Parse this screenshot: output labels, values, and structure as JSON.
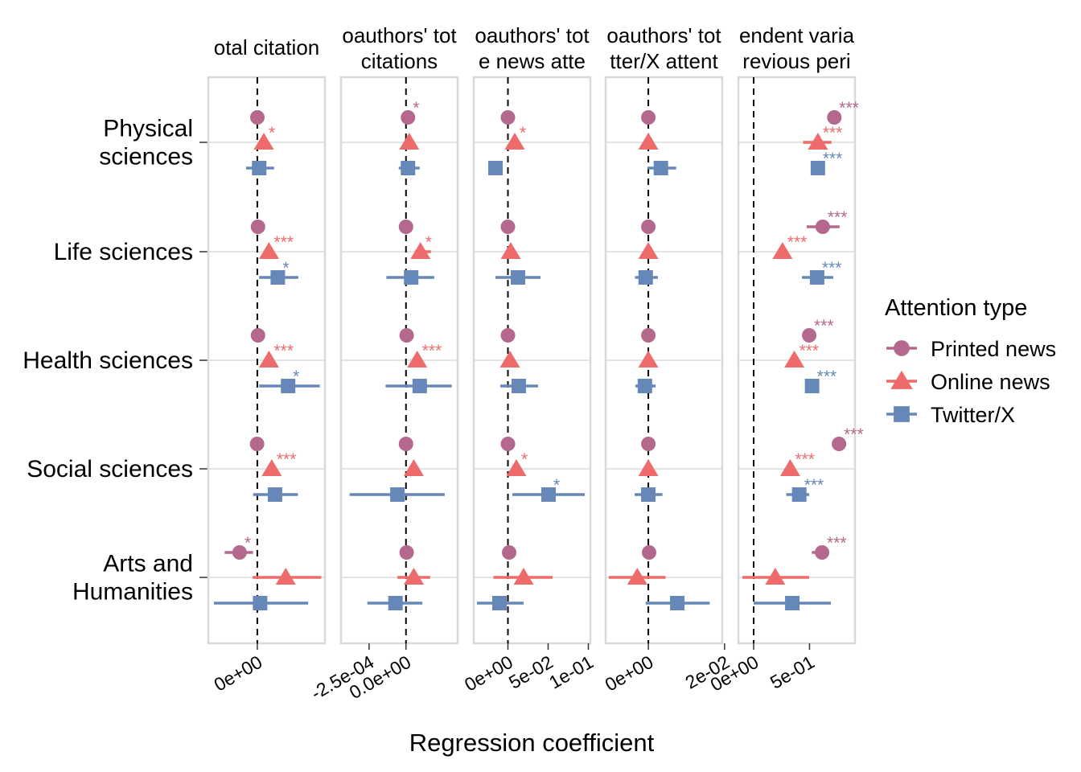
{
  "chart_data": {
    "type": "scatter",
    "xlabel": "Regression coefficient",
    "categories": [
      "Physical sciences",
      "Life sciences",
      "Health sciences",
      "Social sciences",
      "Arts and Humanities"
    ],
    "category_lines": [
      [
        "Physical",
        "sciences"
      ],
      [
        "Life sciences"
      ],
      [
        "Health sciences"
      ],
      [
        "Social sciences"
      ],
      [
        "Arts and",
        "Humanities"
      ]
    ],
    "legend": {
      "title": "Attention type",
      "position": "right",
      "items": [
        {
          "name": "Printed news",
          "color": "#b5688d",
          "shape": "circle"
        },
        {
          "name": "Online news",
          "color": "#ee6b6b",
          "shape": "triangle"
        },
        {
          "name": "Twitter/X",
          "color": "#6688b8",
          "shape": "square"
        }
      ]
    },
    "facets": [
      {
        "strip": [
          "otal citation"
        ],
        "xlim": [
          -0.000105,
          0.000145
        ],
        "ticks": [
          {
            "value": 0,
            "label": "0e+00"
          }
        ],
        "dashed_zero": true,
        "series": [
          {
            "name": "Printed news",
            "values": [
              1e-07,
              1.5e-06,
              1.5e-06,
              -5e-07,
              -3.8e-05
            ],
            "ci_low": [
              null,
              null,
              null,
              null,
              -7e-05
            ],
            "ci_high": [
              null,
              null,
              null,
              null,
              -9e-06
            ],
            "sig": [
              "",
              "",
              "",
              "",
              "*"
            ]
          },
          {
            "name": "Online news",
            "values": [
              1.4e-05,
              2.5e-05,
              2.5e-05,
              3.1e-05,
              6.1e-05
            ],
            "ci_low": [
              null,
              null,
              null,
              null,
              -1e-05
            ],
            "ci_high": [
              null,
              null,
              null,
              null,
              0.000137
            ],
            "sig": [
              "*",
              "***",
              "***",
              "***",
              ""
            ]
          },
          {
            "name": "Twitter/X",
            "values": [
              4e-06,
              4.4e-05,
              6.6e-05,
              3.8e-05,
              6e-06
            ],
            "ci_low": [
              -2.4e-05,
              4e-06,
              4e-06,
              -9e-06,
              -9.3e-05
            ],
            "ci_high": [
              3.6e-05,
              8.8e-05,
              0.000134,
              8.7e-05,
              0.000109
            ],
            "sig": [
              "",
              "*",
              "*",
              "",
              ""
            ]
          }
        ]
      },
      {
        "strip": [
          "oauthors' tot",
          "citations"
        ],
        "xlim": [
          -0.00044,
          0.00035
        ],
        "ticks": [
          {
            "value": -0.00025,
            "label": "-2.5e-04"
          },
          {
            "value": 0,
            "label": "0.0e+00"
          }
        ],
        "dashed_zero": true,
        "series": [
          {
            "name": "Printed news",
            "values": [
              1.35e-05,
              1e-07,
              4.5e-06,
              1e-07,
              4.5e-06
            ],
            "ci_low": [
              null,
              null,
              null,
              null,
              null
            ],
            "ci_high": [
              null,
              null,
              null,
              null,
              null
            ],
            "sig": [
              "*",
              "",
              "",
              "",
              ""
            ]
          },
          {
            "name": "Online news",
            "values": [
              2.2e-05,
              9.8e-05,
              7.6e-05,
              5.3e-05,
              5.3e-05
            ],
            "ci_low": [
              null,
              6e-05,
              null,
              null,
              -5.8e-05
            ],
            "ci_high": [
              null,
              0.000169,
              null,
              null,
              0.000164
            ],
            "sig": [
              "",
              "*",
              "***",
              "",
              ""
            ]
          },
          {
            "name": "Twitter/X",
            "values": [
              1.35e-05,
              3.5e-05,
              9.3e-05,
              -5.8e-05,
              -7.1e-05
            ],
            "ci_low": [
              -4.9e-05,
              -0.000133,
              -0.000138,
              -0.000382,
              -0.000262
            ],
            "ci_high": [
              9.3e-05,
              0.000191,
              0.00031,
              0.000262,
              0.000111
            ],
            "sig": [
              "",
              "",
              "",
              "",
              ""
            ]
          }
        ]
      },
      {
        "strip": [
          "oauthors' tot",
          "e news atte"
        ],
        "xlim": [
          -0.0425,
          0.1025
        ],
        "ticks": [
          {
            "value": 0,
            "label": "0e+00"
          },
          {
            "value": 0.05,
            "label": "5e-02"
          },
          {
            "value": 0.1,
            "label": "1e-01"
          }
        ],
        "dashed_zero": true,
        "series": [
          {
            "name": "Printed news",
            "values": [
              0,
              0,
              0,
              0,
              0.0015
            ],
            "ci_low": [
              null,
              null,
              null,
              null,
              null
            ],
            "ci_high": [
              null,
              null,
              null,
              null,
              null
            ],
            "sig": [
              "",
              "",
              "",
              "",
              ""
            ]
          },
          {
            "name": "Online news",
            "values": [
              0.0085,
              0.0035,
              0.0025,
              0.0105,
              0.0195
            ],
            "ci_low": [
              null,
              null,
              null,
              null,
              -0.018
            ],
            "ci_high": [
              null,
              null,
              null,
              null,
              0.0555
            ],
            "sig": [
              "*",
              "",
              "",
              "*",
              ""
            ]
          },
          {
            "name": "Twitter/X",
            "values": [
              -0.0155,
              0.0125,
              0.0135,
              0.0505,
              -0.0105
            ],
            "ci_low": [
              -0.0245,
              -0.0155,
              -0.0095,
              0.0055,
              -0.0385
            ],
            "ci_high": [
              -0.0125,
              0.0405,
              0.0375,
              0.0955,
              0.0195
            ],
            "sig": [
              "",
              "",
              "",
              "*",
              ""
            ]
          }
        ]
      },
      {
        "strip": [
          "oauthors' tot",
          "tter/X attent"
        ],
        "xlim": [
          -0.0112,
          0.0194
        ],
        "ticks": [
          {
            "value": 0,
            "label": "0e+00"
          },
          {
            "value": 0.02,
            "label": "2e-02"
          }
        ],
        "dashed_zero": true,
        "series": [
          {
            "name": "Printed news",
            "values": [
              0,
              0,
              0,
              0,
              0.0002
            ],
            "ci_low": [
              null,
              null,
              null,
              null,
              null
            ],
            "ci_high": [
              null,
              null,
              null,
              null,
              null
            ],
            "sig": [
              "",
              "",
              "",
              "",
              ""
            ]
          },
          {
            "name": "Online news",
            "values": [
              0,
              0,
              0,
              0,
              -0.0029
            ],
            "ci_low": [
              null,
              null,
              null,
              null,
              -0.0104
            ],
            "ci_high": [
              null,
              null,
              null,
              null,
              0.0045
            ],
            "sig": [
              "",
              "",
              "",
              "",
              ""
            ]
          },
          {
            "name": "Twitter/X",
            "values": [
              0.0033,
              -0.0007,
              -0.0009,
              0,
              0.0076
            ],
            "ci_low": [
              -0.0002,
              -0.0035,
              -0.0034,
              -0.0036,
              -0.0007
            ],
            "ci_high": [
              0.0073,
              0.0025,
              0.0019,
              0.0037,
              0.0161
            ],
            "sig": [
              "",
              "",
              "",
              "",
              ""
            ]
          }
        ]
      },
      {
        "strip": [
          "endent varia",
          "revious peri"
        ],
        "xlim": [
          -0.137,
          0.907
        ],
        "ticks": [
          {
            "value": 0,
            "label": "0e+00"
          },
          {
            "value": 0.5,
            "label": "5e-01"
          }
        ],
        "dashed_zero": true,
        "series": [
          {
            "name": "Printed news",
            "values": [
              0.722,
              0.618,
              0.497,
              0.764,
              0.612
            ],
            "ci_low": [
              null,
              0.475,
              null,
              0.71,
              0.521
            ],
            "ci_high": [
              null,
              0.769,
              null,
              null,
              null
            ],
            "sig": [
              "***",
              "***",
              "***",
              "***",
              "***"
            ]
          },
          {
            "name": "Online news",
            "values": [
              0.575,
              0.258,
              0.364,
              0.327,
              0.193
            ],
            "ci_low": [
              0.442,
              null,
              null,
              null,
              -0.101
            ],
            "ci_high": [
              0.697,
              null,
              null,
              null,
              0.497
            ],
            "sig": [
              "***",
              "***",
              "***",
              "***",
              ""
            ]
          },
          {
            "name": "Twitter/X",
            "values": [
              0.575,
              0.568,
              0.523,
              0.408,
              0.346
            ],
            "ci_low": [
              null,
              0.432,
              null,
              0.292,
              0.0
            ],
            "ci_high": [
              null,
              0.712,
              null,
              0.497,
              0.691
            ],
            "sig": [
              "***",
              "***",
              "***",
              "***",
              ""
            ]
          }
        ]
      }
    ]
  }
}
